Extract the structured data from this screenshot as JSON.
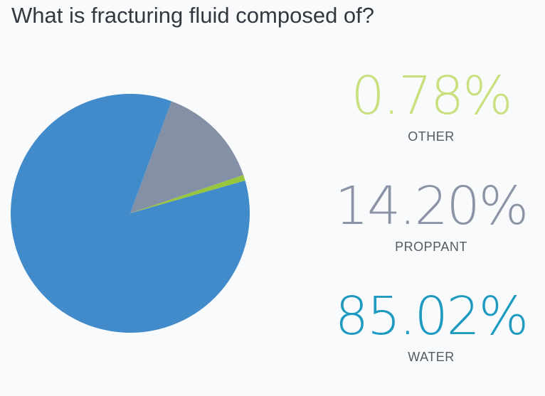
{
  "title": "What is fracturing fluid composed of?",
  "chart_data": {
    "type": "pie",
    "title": "What is fracturing fluid composed of?",
    "series": [
      {
        "name": "WATER",
        "value": 85.02,
        "display": "85.02%",
        "color": "#418bca"
      },
      {
        "name": "OTHER",
        "value": 0.78,
        "display": "0.78%",
        "color": "#98c63c"
      },
      {
        "name": "PROPPANT",
        "value": 14.2,
        "display": "14.20%",
        "color": "#8390a5"
      }
    ],
    "legend_colors": {
      "OTHER": "#c8e07e",
      "PROPPANT": "#8a94a6",
      "WATER": "#1e9ac0"
    }
  }
}
